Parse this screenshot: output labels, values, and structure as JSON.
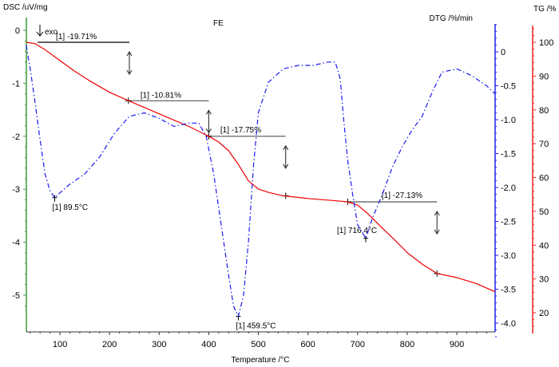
{
  "chart_data": {
    "type": "line",
    "title": "FE",
    "xlabel": "Temperature /°C",
    "xlim": [
      32,
      977
    ],
    "xticks": [
      100,
      200,
      300,
      400,
      500,
      600,
      700,
      800,
      900
    ],
    "exo_label": "exo",
    "axes": {
      "dsc": {
        "label": "DSC /uV/mg",
        "ylim": [
          -5.5,
          0.2
        ],
        "ticks": [
          0,
          -1,
          -2,
          -3,
          -4,
          -5
        ],
        "color": "#3a9a3a"
      },
      "dtg": {
        "label": "DTG /%/min",
        "ylim": [
          -4.4,
          0.5
        ],
        "ticks": [
          0,
          -0.5,
          -1.0,
          -1.5,
          -2.0,
          -2.5,
          -3.0,
          -3.5,
          -4.0
        ],
        "tick_labels": [
          "0",
          "-0.5",
          "-1.0",
          "-1.5",
          "-2.0",
          "-2.5",
          "-3.0",
          "-3.5",
          "-4.0"
        ],
        "color": "#2222ee"
      },
      "tg": {
        "label": "TG /%",
        "ylim": [
          15,
          106
        ],
        "ticks": [
          100,
          90,
          80,
          70,
          60,
          50,
          40,
          30,
          20
        ],
        "color": "#ee2222"
      }
    },
    "series": [
      {
        "name": "TG",
        "axis": "tg",
        "color": "#ee0000",
        "style": "solid",
        "x": [
          32,
          50,
          70,
          100,
          130,
          160,
          200,
          240,
          280,
          320,
          360,
          400,
          420,
          440,
          460,
          480,
          500,
          520,
          550,
          600,
          650,
          680,
          700,
          720,
          750,
          780,
          800,
          830,
          860,
          900,
          940,
          977
        ],
        "y": [
          100.0,
          99.6,
          97.8,
          94.6,
          91.4,
          88.6,
          85.2,
          82.6,
          80.1,
          77.6,
          75.1,
          72.2,
          70.5,
          67.9,
          63.8,
          59.0,
          56.6,
          55.6,
          54.6,
          53.8,
          53.2,
          52.8,
          51.8,
          49.4,
          45.0,
          40.8,
          37.8,
          34.4,
          31.6,
          30.4,
          28.6,
          26.2
        ]
      },
      {
        "name": "DTG",
        "axis": "dtg",
        "color": "#1a1aee",
        "style": "dashdot",
        "x": [
          32,
          40,
          50,
          60,
          70,
          80,
          89.5,
          100,
          120,
          150,
          180,
          210,
          240,
          270,
          300,
          330,
          360,
          380,
          395,
          410,
          425,
          440,
          450,
          459.5,
          470,
          480,
          490,
          500,
          520,
          550,
          580,
          610,
          640,
          655,
          665,
          672,
          680,
          690,
          700,
          716.4,
          730,
          750,
          770,
          790,
          810,
          830,
          850,
          870,
          900,
          930,
          960,
          977
        ],
        "y": [
          0.1,
          -0.25,
          -0.75,
          -1.3,
          -1.8,
          -2.05,
          -2.15,
          -2.08,
          -1.95,
          -1.8,
          -1.55,
          -1.2,
          -0.95,
          -0.9,
          -0.98,
          -1.1,
          -1.05,
          -1.05,
          -1.25,
          -1.8,
          -2.55,
          -3.3,
          -3.75,
          -3.9,
          -3.6,
          -2.8,
          -1.7,
          -0.9,
          -0.45,
          -0.25,
          -0.2,
          -0.2,
          -0.15,
          -0.15,
          -0.4,
          -1.0,
          -1.6,
          -2.1,
          -2.55,
          -2.75,
          -2.45,
          -2.1,
          -1.7,
          -1.4,
          -1.15,
          -0.95,
          -0.6,
          -0.3,
          -0.25,
          -0.35,
          -0.5,
          -0.62
        ]
      }
    ],
    "annotations": {
      "mass_steps": [
        {
          "label": "[1] -19.71%",
          "x_from": 55,
          "x_to": 240,
          "tg_level": 100.0,
          "arrow_x": 240
        },
        {
          "label": "[1] -10.81%",
          "x_from": 238,
          "x_to": 400,
          "tg_level": 82.7,
          "arrow_x": 400
        },
        {
          "label": "[1] -17.75%",
          "x_from": 400,
          "x_to": 555,
          "tg_level": 72.2,
          "arrow_x": 555
        },
        {
          "label": "[1] -27.13%",
          "x_from": 680,
          "x_to": 860,
          "tg_level": 52.8,
          "arrow_x": 860
        }
      ],
      "end_markers": [
        {
          "x": 555,
          "tg": 54.6
        },
        {
          "x": 860,
          "tg": 31.6
        }
      ],
      "peaks": [
        {
          "label": "[1] 89.5°C",
          "x": 89.5,
          "dtg": -2.15
        },
        {
          "label": "[1] 459.5°C",
          "x": 459.5,
          "dtg": -3.9
        },
        {
          "label": "[1] 716.4°C",
          "x": 716.4,
          "dtg": -2.75
        }
      ]
    }
  }
}
